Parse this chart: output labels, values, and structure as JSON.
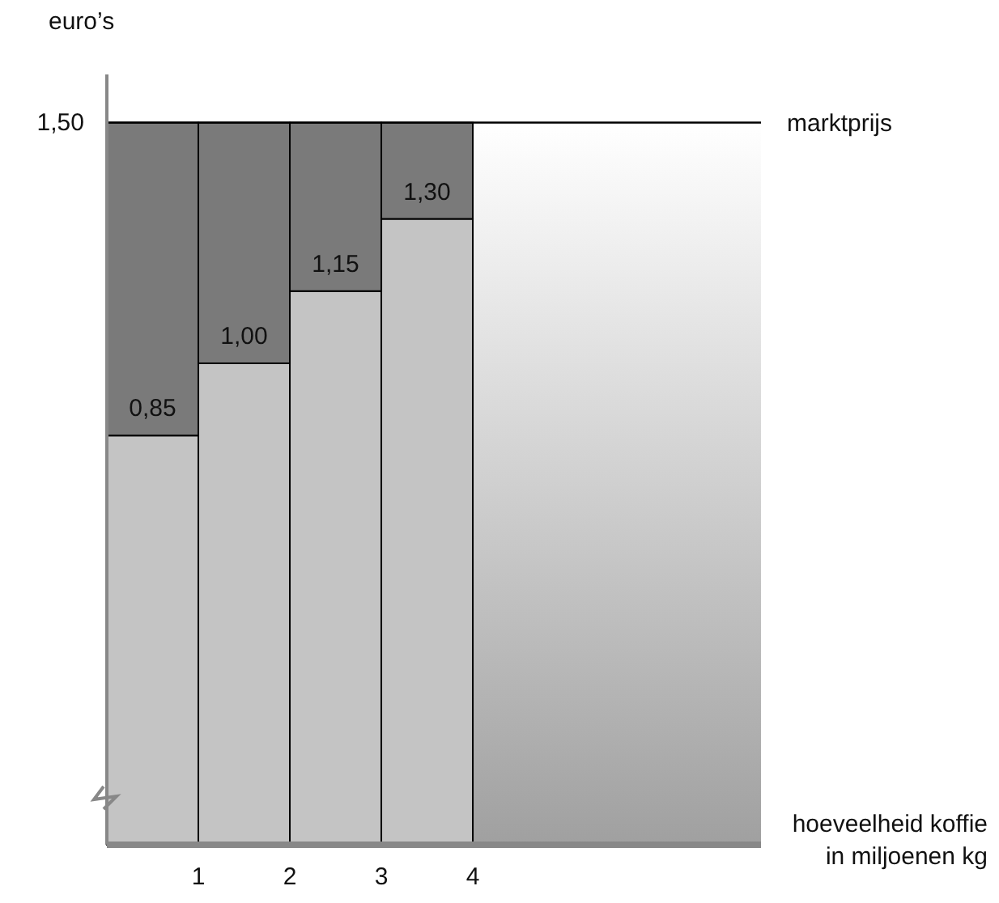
{
  "chart_data": {
    "type": "bar",
    "stacked": true,
    "xlabel": "hoeveelheid koffie\nin miljoenen kg",
    "ylabel": "euro’s",
    "x": [
      0.5,
      1.5,
      2.5,
      3.5
    ],
    "xlim": [
      0,
      7.15
    ],
    "xticks": [
      1,
      2,
      3,
      4
    ],
    "ylim": [
      0,
      1.6
    ],
    "yticks": [
      {
        "value": 1.5,
        "label": "1,50"
      }
    ],
    "series": [
      {
        "color": "#c4c4c4",
        "values": [
          0.85,
          1.0,
          1.15,
          1.3
        ],
        "value_labels": [
          "0,85",
          "1,00",
          "1,15",
          "1,30"
        ]
      },
      {
        "color": "#7a7a7a",
        "values": [
          0.65,
          0.5,
          0.35,
          0.2
        ]
      }
    ],
    "ref_lines": [
      {
        "axis": "y",
        "value": 1.5,
        "label": "marktprijs",
        "color": "#000000"
      }
    ],
    "grid": false
  }
}
